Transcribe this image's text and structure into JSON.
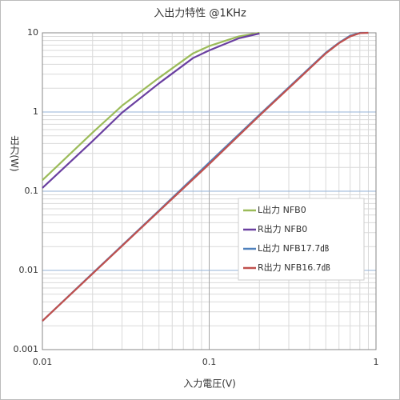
{
  "chart_data": {
    "type": "line",
    "title": "入出力特性 @1KHz",
    "x_label": "入力電圧(V)",
    "y_label": "出力(W)",
    "xscale": "log",
    "yscale": "log",
    "grid": true,
    "legend": "right",
    "xlim": [
      0.01,
      1
    ],
    "xticks": [
      0.01,
      0.1,
      1
    ],
    "ylim": [
      0.001,
      10
    ],
    "yticks": [
      0.001,
      0.01,
      0.1,
      1,
      10
    ],
    "series": [
      {
        "name": "L出力 NFB0",
        "color": "#9bbb59",
        "x": [
          0.01,
          0.02,
          0.03,
          0.05,
          0.08,
          0.1,
          0.15,
          0.2
        ],
        "values": [
          0.138,
          0.55,
          1.2,
          2.7,
          5.5,
          6.8,
          9.0,
          10
        ]
      },
      {
        "name": "R出力 NFB0",
        "color": "#6a3fa0",
        "x": [
          0.01,
          0.02,
          0.03,
          0.05,
          0.08,
          0.1,
          0.15,
          0.2
        ],
        "values": [
          0.11,
          0.43,
          0.98,
          2.3,
          4.8,
          6.0,
          8.5,
          9.8
        ]
      },
      {
        "name": "L出力 NFB17.7㏈",
        "color": "#4f81bd",
        "x": [
          0.01,
          0.02,
          0.05,
          0.1,
          0.2,
          0.3,
          0.5,
          0.6,
          0.7,
          0.8,
          0.9
        ],
        "values": [
          0.0023,
          0.0092,
          0.057,
          0.23,
          0.92,
          2.05,
          5.6,
          7.5,
          9.2,
          10,
          10
        ]
      },
      {
        "name": "R出力 NFB16.7㏈",
        "color": "#c0504d",
        "x": [
          0.01,
          0.02,
          0.05,
          0.1,
          0.2,
          0.3,
          0.5,
          0.6,
          0.7,
          0.8,
          0.9
        ],
        "values": [
          0.0023,
          0.0091,
          0.056,
          0.22,
          0.9,
          2.0,
          5.5,
          7.4,
          9.0,
          9.9,
          10
        ]
      }
    ]
  }
}
